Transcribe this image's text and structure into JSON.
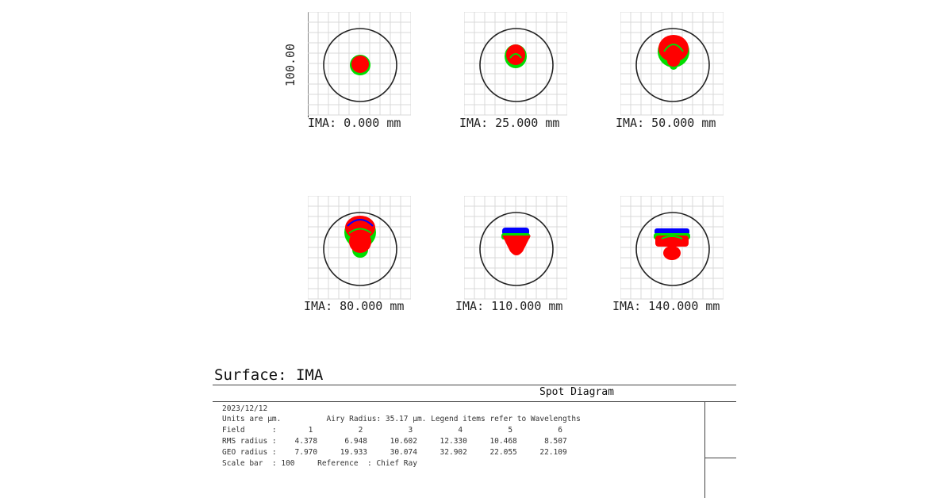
{
  "scale_label": "100.00",
  "panels": [
    {
      "label": "IMA: 0.000 mm"
    },
    {
      "label": "IMA: 25.000 mm"
    },
    {
      "label": "IMA: 50.000 mm"
    },
    {
      "label": "IMA: 80.000 mm"
    },
    {
      "label": "IMA: 110.000 mm"
    },
    {
      "label": "IMA: 140.000 mm"
    }
  ],
  "colors": {
    "wavelength_1": "#0000ff",
    "wavelength_2": "#00dd00",
    "wavelength_3": "#ff0000",
    "airy_circle": "#222222",
    "grid": "#d8d8d8"
  },
  "surface": "Surface: IMA",
  "title": "Spot Diagram",
  "info": {
    "date": "2023/12/12",
    "units": "Units are µm.          Airy Radius: 35.17 µm. Legend items refer to Wavelengths",
    "field_row": "Field      :       1          2          3          4          5          6",
    "rms_row": "RMS radius :    4.378      6.948     10.602     12.330     10.468      8.507",
    "geo_row": "GEO radius :    7.970     19.933     30.074     32.902     22.055     22.109",
    "scale_row": "Scale bar  : 100     Reference  : Chief Ray"
  }
}
